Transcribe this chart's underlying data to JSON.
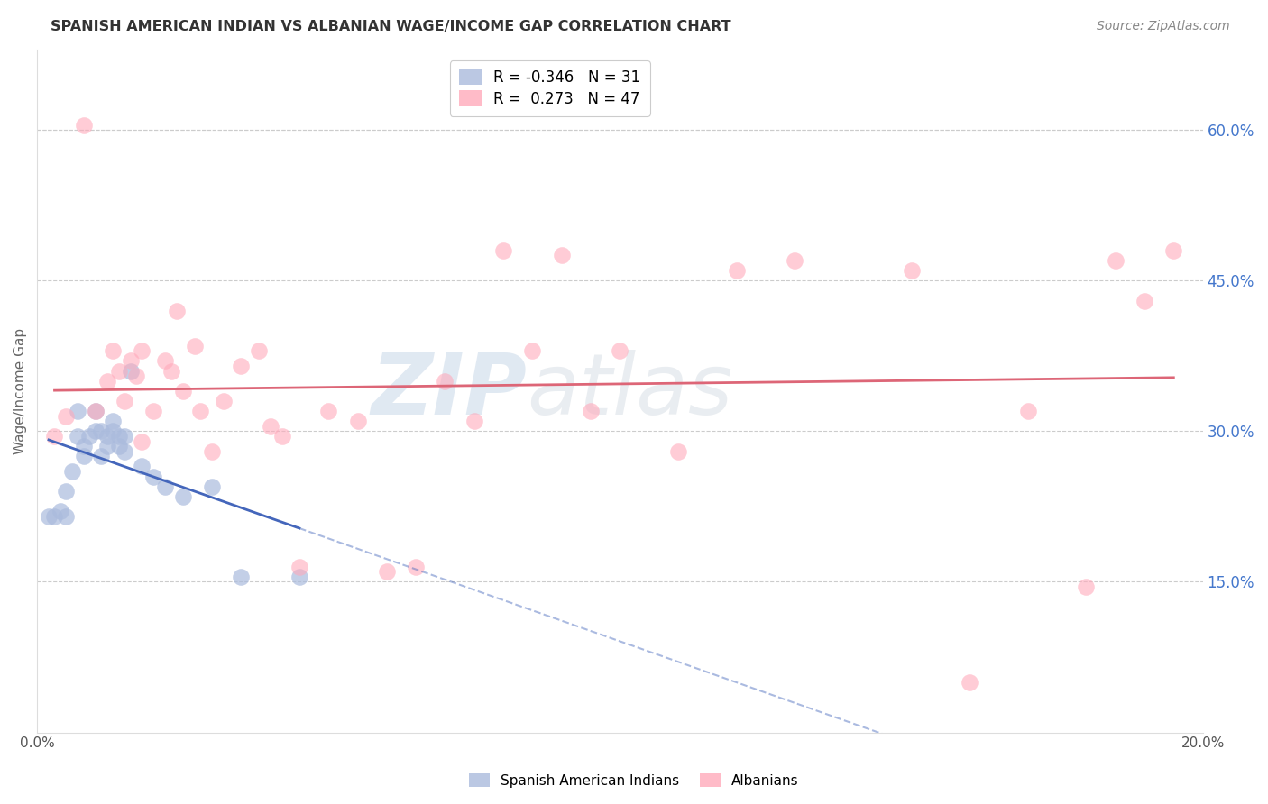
{
  "title": "SPANISH AMERICAN INDIAN VS ALBANIAN WAGE/INCOME GAP CORRELATION CHART",
  "source": "Source: ZipAtlas.com",
  "ylabel": "Wage/Income Gap",
  "watermark_zip": "ZIP",
  "watermark_atlas": "atlas",
  "xlim": [
    0.0,
    0.2
  ],
  "ylim": [
    0.0,
    0.68
  ],
  "ytick_labels_right": [
    "60.0%",
    "45.0%",
    "30.0%",
    "15.0%"
  ],
  "ytick_positions_right": [
    0.6,
    0.45,
    0.3,
    0.15
  ],
  "blue_r": -0.346,
  "blue_n": 31,
  "pink_r": 0.273,
  "pink_n": 47,
  "blue_color": "#AABBDD",
  "pink_color": "#FFAABB",
  "blue_line_color": "#4466BB",
  "pink_line_color": "#DD6677",
  "grid_color": "#CCCCCC",
  "background_color": "#FFFFFF",
  "blue_scatter_x": [
    0.002,
    0.003,
    0.004,
    0.005,
    0.005,
    0.006,
    0.007,
    0.007,
    0.008,
    0.008,
    0.009,
    0.01,
    0.01,
    0.011,
    0.011,
    0.012,
    0.012,
    0.013,
    0.013,
    0.014,
    0.014,
    0.015,
    0.015,
    0.016,
    0.018,
    0.02,
    0.022,
    0.025,
    0.03,
    0.035,
    0.045
  ],
  "blue_scatter_y": [
    0.215,
    0.215,
    0.22,
    0.215,
    0.24,
    0.26,
    0.32,
    0.295,
    0.285,
    0.275,
    0.295,
    0.3,
    0.32,
    0.3,
    0.275,
    0.295,
    0.285,
    0.3,
    0.31,
    0.295,
    0.285,
    0.28,
    0.295,
    0.36,
    0.265,
    0.255,
    0.245,
    0.235,
    0.245,
    0.155,
    0.155
  ],
  "pink_scatter_x": [
    0.003,
    0.005,
    0.008,
    0.01,
    0.012,
    0.013,
    0.014,
    0.015,
    0.016,
    0.017,
    0.018,
    0.018,
    0.02,
    0.022,
    0.023,
    0.024,
    0.025,
    0.027,
    0.028,
    0.03,
    0.032,
    0.035,
    0.038,
    0.04,
    0.042,
    0.045,
    0.05,
    0.055,
    0.06,
    0.065,
    0.07,
    0.075,
    0.08,
    0.085,
    0.09,
    0.095,
    0.1,
    0.11,
    0.12,
    0.13,
    0.15,
    0.16,
    0.17,
    0.18,
    0.185,
    0.19,
    0.195
  ],
  "pink_scatter_y": [
    0.295,
    0.315,
    0.605,
    0.32,
    0.35,
    0.38,
    0.36,
    0.33,
    0.37,
    0.355,
    0.38,
    0.29,
    0.32,
    0.37,
    0.36,
    0.42,
    0.34,
    0.385,
    0.32,
    0.28,
    0.33,
    0.365,
    0.38,
    0.305,
    0.295,
    0.165,
    0.32,
    0.31,
    0.16,
    0.165,
    0.35,
    0.31,
    0.48,
    0.38,
    0.475,
    0.32,
    0.38,
    0.28,
    0.46,
    0.47,
    0.46,
    0.05,
    0.32,
    0.145,
    0.47,
    0.43,
    0.48
  ]
}
